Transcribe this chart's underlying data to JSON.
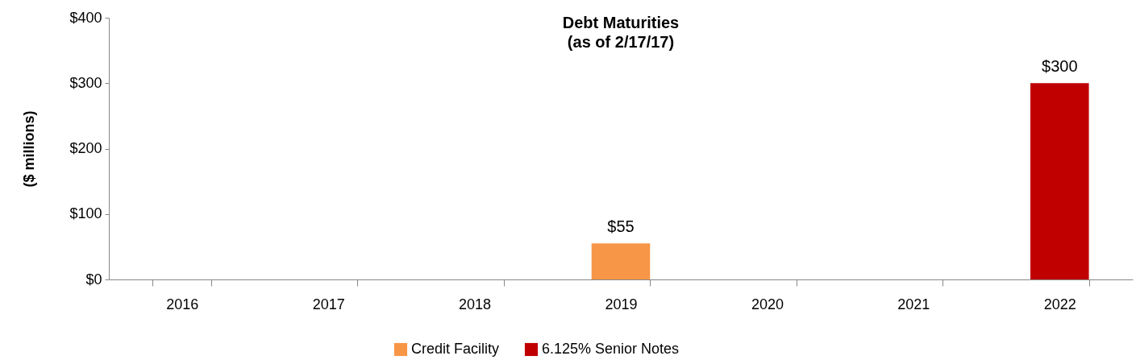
{
  "chart_data": {
    "type": "bar",
    "title": "Debt Maturities",
    "subtitle": "(as of 2/17/17)",
    "ylabel": "($ millions)",
    "categories": [
      "2016",
      "2017",
      "2018",
      "2019",
      "2020",
      "2021",
      "2022"
    ],
    "series": [
      {
        "name": "Credit Facility",
        "color": "#f79646",
        "values": [
          null,
          null,
          null,
          55,
          null,
          null,
          null
        ],
        "value_labels": [
          null,
          null,
          null,
          "$55",
          null,
          null,
          null
        ]
      },
      {
        "name": "6.125% Senior Notes",
        "color": "#c00000",
        "values": [
          null,
          null,
          null,
          null,
          null,
          null,
          300
        ],
        "value_labels": [
          null,
          null,
          null,
          null,
          null,
          null,
          "$300"
        ]
      }
    ],
    "ylim": [
      0,
      400
    ],
    "yticks": [
      {
        "value": 0,
        "label": "$0"
      },
      {
        "value": 100,
        "label": "$100"
      },
      {
        "value": 200,
        "label": "$200"
      },
      {
        "value": 300,
        "label": "$300"
      },
      {
        "value": 400,
        "label": "$400"
      }
    ],
    "grid": false,
    "legend": "bottom"
  }
}
